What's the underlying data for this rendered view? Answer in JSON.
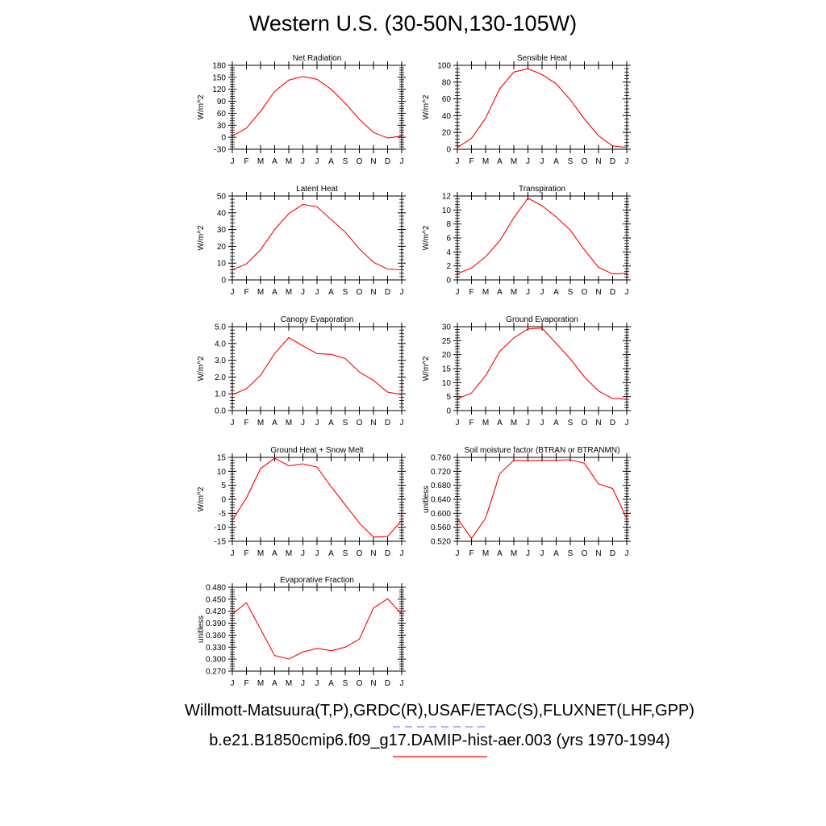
{
  "page": {
    "title": "Western U.S. (30-50N,130-105W)",
    "legend_obs": "Willmott-Matsuura(T,P),GRDC(R),USAF/ETAC(S),FLUXNET(LHF,GPP)",
    "legend_model": "b.e21.B1850cmip6.f09_g17.DAMIP-hist-aer.003 (yrs 1970-1994)",
    "colors": {
      "model": "#ff0000",
      "obs": "#8080ff",
      "axis": "#000000"
    }
  },
  "months": [
    "J",
    "F",
    "M",
    "A",
    "M",
    "J",
    "J",
    "A",
    "S",
    "O",
    "N",
    "D",
    "J"
  ],
  "chart_data": [
    {
      "type": "line",
      "title": "Net Radiation",
      "ylabel": "W/m^2",
      "ylim": [
        -30,
        180
      ],
      "yticks": [
        -30,
        0,
        30,
        60,
        90,
        120,
        150,
        180
      ],
      "yticklabels": [
        "-30",
        "0",
        "30",
        "60",
        "90",
        "120",
        "150",
        "180"
      ],
      "series": [
        {
          "values": [
            3,
            23,
            65,
            115,
            143,
            152,
            145,
            120,
            85,
            45,
            12,
            -2,
            3
          ]
        }
      ]
    },
    {
      "type": "line",
      "title": "Sensible Heat",
      "ylabel": "W/m^2",
      "ylim": [
        0,
        100
      ],
      "yticks": [
        0,
        20,
        40,
        60,
        80,
        100
      ],
      "yticklabels": [
        "0",
        "20",
        "40",
        "60",
        "80",
        "100"
      ],
      "series": [
        {
          "values": [
            2,
            13,
            37,
            72,
            92,
            96,
            89,
            78,
            59,
            36,
            16,
            4,
            2
          ]
        }
      ]
    },
    {
      "type": "line",
      "title": "Latent Heat",
      "ylabel": "W/m^2",
      "ylim": [
        0,
        50
      ],
      "yticks": [
        0,
        10,
        20,
        30,
        40,
        50
      ],
      "yticklabels": [
        "0",
        "10",
        "20",
        "30",
        "40",
        "50"
      ],
      "series": [
        {
          "values": [
            6,
            9.5,
            18,
            30,
            39.5,
            45,
            43.5,
            36,
            28.5,
            18.5,
            10.5,
            6.5,
            6
          ]
        }
      ]
    },
    {
      "type": "line",
      "title": "Transpiration",
      "ylabel": "W/m^2",
      "ylim": [
        0,
        12
      ],
      "yticks": [
        0,
        2,
        4,
        6,
        8,
        10,
        12
      ],
      "yticklabels": [
        "0",
        "2",
        "4",
        "6",
        "8",
        "10",
        "12"
      ],
      "series": [
        {
          "values": [
            0.9,
            1.7,
            3.3,
            5.6,
            8.9,
            11.7,
            10.6,
            9.0,
            7.1,
            4.3,
            1.8,
            0.85,
            0.95
          ]
        }
      ]
    },
    {
      "type": "line",
      "title": "Canopy Evaporation",
      "ylabel": "W/m^2",
      "ylim": [
        0,
        5
      ],
      "yticks": [
        0,
        1,
        2,
        3,
        4,
        5
      ],
      "yticklabels": [
        "0.0",
        "1.0",
        "2.0",
        "3.0",
        "4.0",
        "5.0"
      ],
      "series": [
        {
          "values": [
            0.95,
            1.3,
            2.1,
            3.4,
            4.35,
            3.85,
            3.4,
            3.35,
            3.1,
            2.3,
            1.8,
            1.1,
            0.95
          ]
        }
      ]
    },
    {
      "type": "line",
      "title": "Ground Evaporation",
      "ylabel": "W/m^2",
      "ylim": [
        0,
        30
      ],
      "yticks": [
        0,
        5,
        10,
        15,
        20,
        25,
        30
      ],
      "yticklabels": [
        "0",
        "5",
        "10",
        "15",
        "20",
        "25",
        "30"
      ],
      "series": [
        {
          "values": [
            4.2,
            6.3,
            12.5,
            21.2,
            26,
            29.2,
            29.5,
            24,
            18.5,
            12,
            7,
            4.3,
            4.1
          ]
        }
      ]
    },
    {
      "type": "line",
      "title": "Ground Heat + Snow Melt",
      "ylabel": "W/m^2",
      "ylim": [
        -15,
        15
      ],
      "yticks": [
        -15,
        -10,
        -5,
        0,
        5,
        10,
        15
      ],
      "yticklabels": [
        "-15",
        "-10",
        "-5",
        "0",
        "5",
        "10",
        "15"
      ],
      "series": [
        {
          "values": [
            -7.5,
            0.5,
            11,
            14.7,
            12,
            12.7,
            11.5,
            4.5,
            -2,
            -8.5,
            -13.5,
            -13.3,
            -7.5
          ]
        }
      ]
    },
    {
      "type": "line",
      "title": "Soil moisture factor (BTRAN or BTRANMN)",
      "ylabel": "unitless",
      "ylim": [
        0.52,
        0.76
      ],
      "yticks": [
        0.52,
        0.56,
        0.6,
        0.64,
        0.68,
        0.72,
        0.76
      ],
      "yticklabels": [
        "0.520",
        "0.560",
        "0.600",
        "0.640",
        "0.680",
        "0.720",
        "0.760"
      ],
      "series": [
        {
          "values": [
            0.585,
            0.528,
            0.586,
            0.713,
            0.752,
            0.751,
            0.752,
            0.752,
            0.753,
            0.743,
            0.684,
            0.671,
            0.585
          ]
        }
      ]
    },
    {
      "type": "line",
      "title": "Evaporative Fraction",
      "ylabel": "unitless",
      "ylim": [
        0.27,
        0.48
      ],
      "yticks": [
        0.27,
        0.3,
        0.33,
        0.36,
        0.39,
        0.42,
        0.45,
        0.48
      ],
      "yticklabels": [
        "0.270",
        "0.300",
        "0.330",
        "0.360",
        "0.390",
        "0.420",
        "0.450",
        "0.480"
      ],
      "series": [
        {
          "values": [
            0.413,
            0.441,
            0.375,
            0.309,
            0.3,
            0.318,
            0.327,
            0.321,
            0.33,
            0.35,
            0.428,
            0.451,
            0.413
          ]
        }
      ]
    }
  ]
}
